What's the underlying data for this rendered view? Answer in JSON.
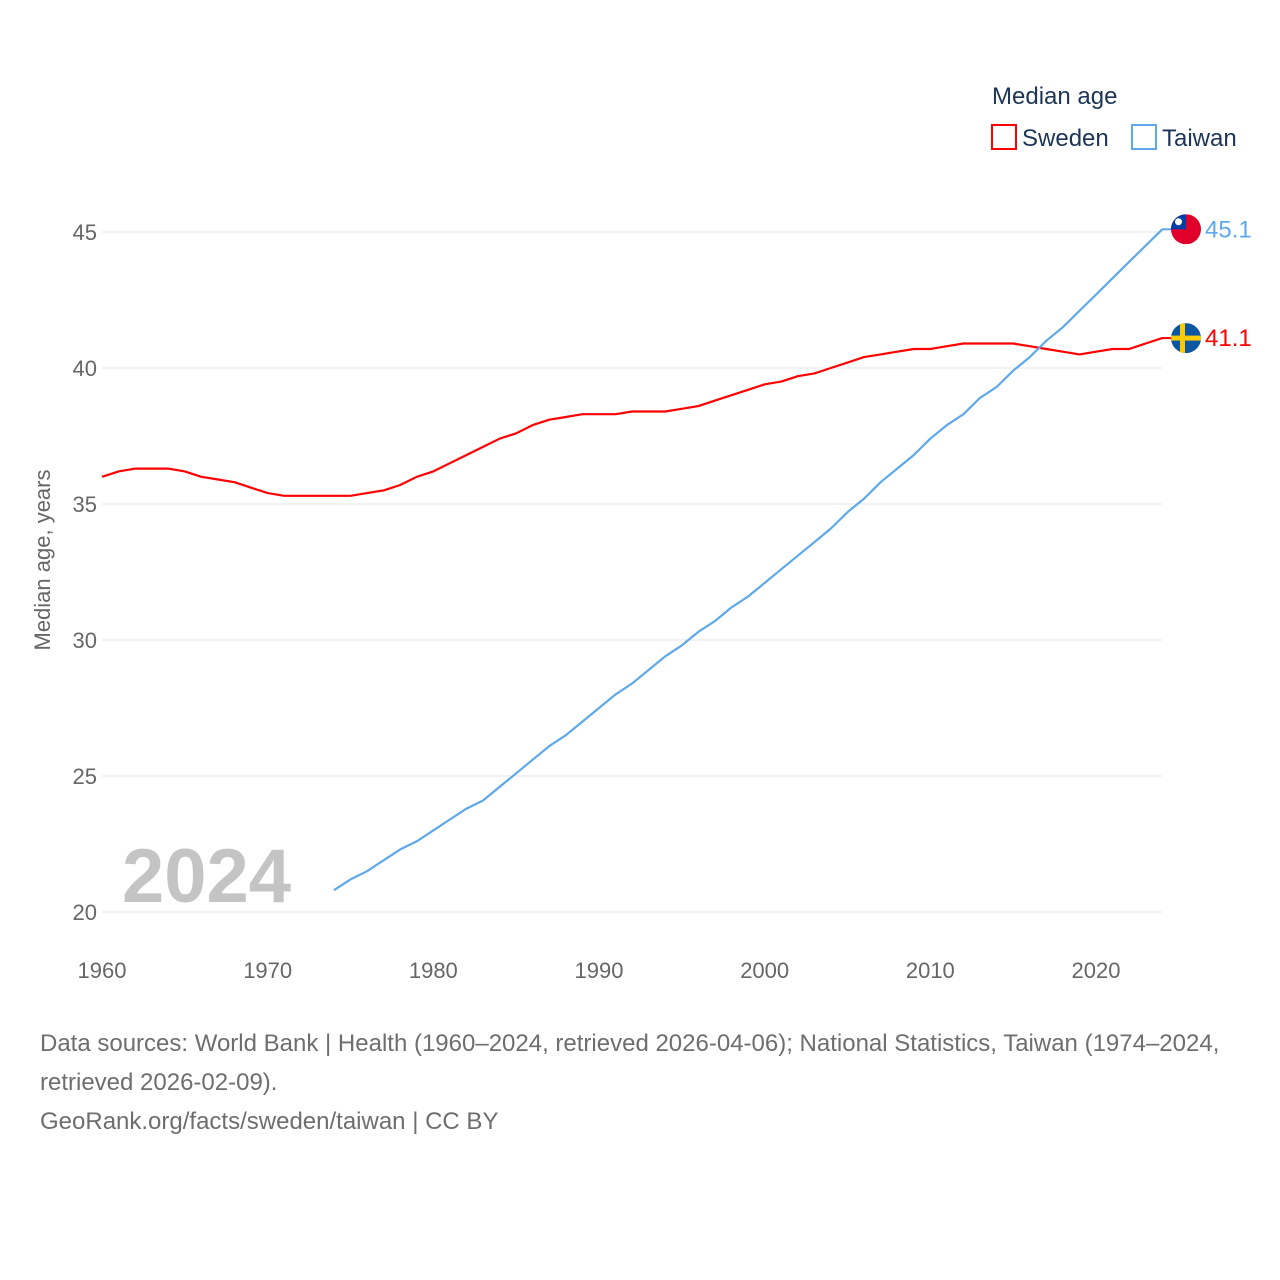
{
  "chart_data": {
    "type": "line",
    "title": "",
    "xlabel": "",
    "ylabel": "Median age, years",
    "xlim": [
      1960,
      2024
    ],
    "ylim": [
      20,
      46
    ],
    "yticks": [
      20,
      25,
      30,
      35,
      40,
      45
    ],
    "xticks": [
      1960,
      1970,
      1980,
      1990,
      2000,
      2010,
      2020
    ],
    "grid": true,
    "legend_title": "Median age",
    "legend_position": "top-right",
    "year_label": "2024",
    "series": [
      {
        "name": "Sweden",
        "color": "#ff0000",
        "end_label": "41.1",
        "flag": "sweden-flag",
        "x_start": 1960,
        "values": [
          36.0,
          36.2,
          36.3,
          36.3,
          36.3,
          36.2,
          36.0,
          35.9,
          35.8,
          35.6,
          35.4,
          35.3,
          35.3,
          35.3,
          35.3,
          35.3,
          35.4,
          35.5,
          35.7,
          36.0,
          36.2,
          36.5,
          36.8,
          37.1,
          37.4,
          37.6,
          37.9,
          38.1,
          38.2,
          38.3,
          38.3,
          38.3,
          38.4,
          38.4,
          38.4,
          38.5,
          38.6,
          38.8,
          39.0,
          39.2,
          39.4,
          39.5,
          39.7,
          39.8,
          40.0,
          40.2,
          40.4,
          40.5,
          40.6,
          40.7,
          40.7,
          40.8,
          40.9,
          40.9,
          40.9,
          40.9,
          40.8,
          40.7,
          40.6,
          40.5,
          40.6,
          40.7,
          40.7,
          40.9,
          41.1
        ]
      },
      {
        "name": "Taiwan",
        "color": "#5ea8ec",
        "end_label": "45.1",
        "flag": "taiwan-flag",
        "x_start": 1974,
        "values": [
          20.8,
          21.2,
          21.5,
          21.9,
          22.3,
          22.6,
          23.0,
          23.4,
          23.8,
          24.1,
          24.6,
          25.1,
          25.6,
          26.1,
          26.5,
          27.0,
          27.5,
          28.0,
          28.4,
          28.9,
          29.4,
          29.8,
          30.3,
          30.7,
          31.2,
          31.6,
          32.1,
          32.6,
          33.1,
          33.6,
          34.1,
          34.7,
          35.2,
          35.8,
          36.3,
          36.8,
          37.4,
          37.9,
          38.3,
          38.9,
          39.3,
          39.9,
          40.4,
          41.0,
          41.5,
          42.1,
          42.7,
          43.3,
          43.9,
          44.5,
          45.1
        ]
      }
    ]
  },
  "footer": {
    "sources": "Data sources: World Bank | Health (1960–2024, retrieved 2026-04-06); National Statistics, Taiwan (1974–2024, retrieved 2026-02-09).",
    "credit": "GeoRank.org/facts/sweden/taiwan | CC BY"
  }
}
